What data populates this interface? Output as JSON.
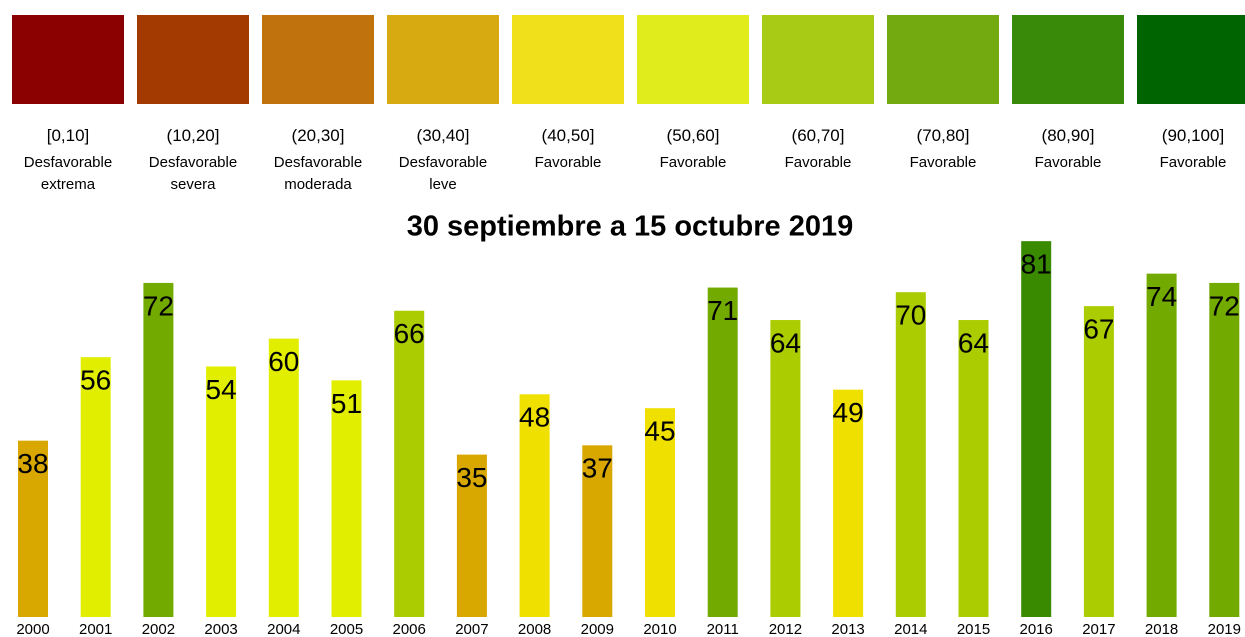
{
  "legend": {
    "items": [
      {
        "color": "#8b0000",
        "range": "[0,10]",
        "label": "Desfavorable extrema"
      },
      {
        "color": "#a33a02",
        "range": "(10,20]",
        "label": "Desfavorable severa"
      },
      {
        "color": "#c0720c",
        "range": "(20,30]",
        "label": "Desfavorable moderada"
      },
      {
        "color": "#d8aa12",
        "range": "(30,40]",
        "label": "Desfavorable leve"
      },
      {
        "color": "#f0e01c",
        "range": "(40,50]",
        "label": "Favorable"
      },
      {
        "color": "#e0ec1c",
        "range": "(50,60]",
        "label": "Favorable"
      },
      {
        "color": "#a8cc16",
        "range": "(60,70]",
        "label": "Favorable"
      },
      {
        "color": "#72aa10",
        "range": "(70,80]",
        "label": "Favorable"
      },
      {
        "color": "#3a8a0a",
        "range": "(80,90]",
        "label": "Favorable"
      },
      {
        "color": "#006400",
        "range": "(90,100]",
        "label": "Favorable"
      }
    ]
  },
  "chart_data": {
    "type": "bar",
    "title": "30 septiembre a 15 octubre 2019",
    "categories": [
      "2000",
      "2001",
      "2002",
      "2003",
      "2004",
      "2005",
      "2006",
      "2007",
      "2008",
      "2009",
      "2010",
      "2011",
      "2012",
      "2013",
      "2014",
      "2015",
      "2016",
      "2017",
      "2018",
      "2019"
    ],
    "values": [
      38,
      56,
      72,
      54,
      60,
      51,
      66,
      35,
      48,
      37,
      45,
      71,
      64,
      49,
      70,
      64,
      81,
      67,
      74,
      72
    ],
    "colors": [
      "#d8a800",
      "#e2ee00",
      "#72aa00",
      "#e2ee00",
      "#e2ee00",
      "#e2ee00",
      "#aacc00",
      "#d8a800",
      "#f0e000",
      "#d8a800",
      "#f0e000",
      "#72aa00",
      "#aacc00",
      "#f0e000",
      "#aacc00",
      "#aacc00",
      "#3a8a00",
      "#aacc00",
      "#72aa00",
      "#72aa00"
    ]
  }
}
